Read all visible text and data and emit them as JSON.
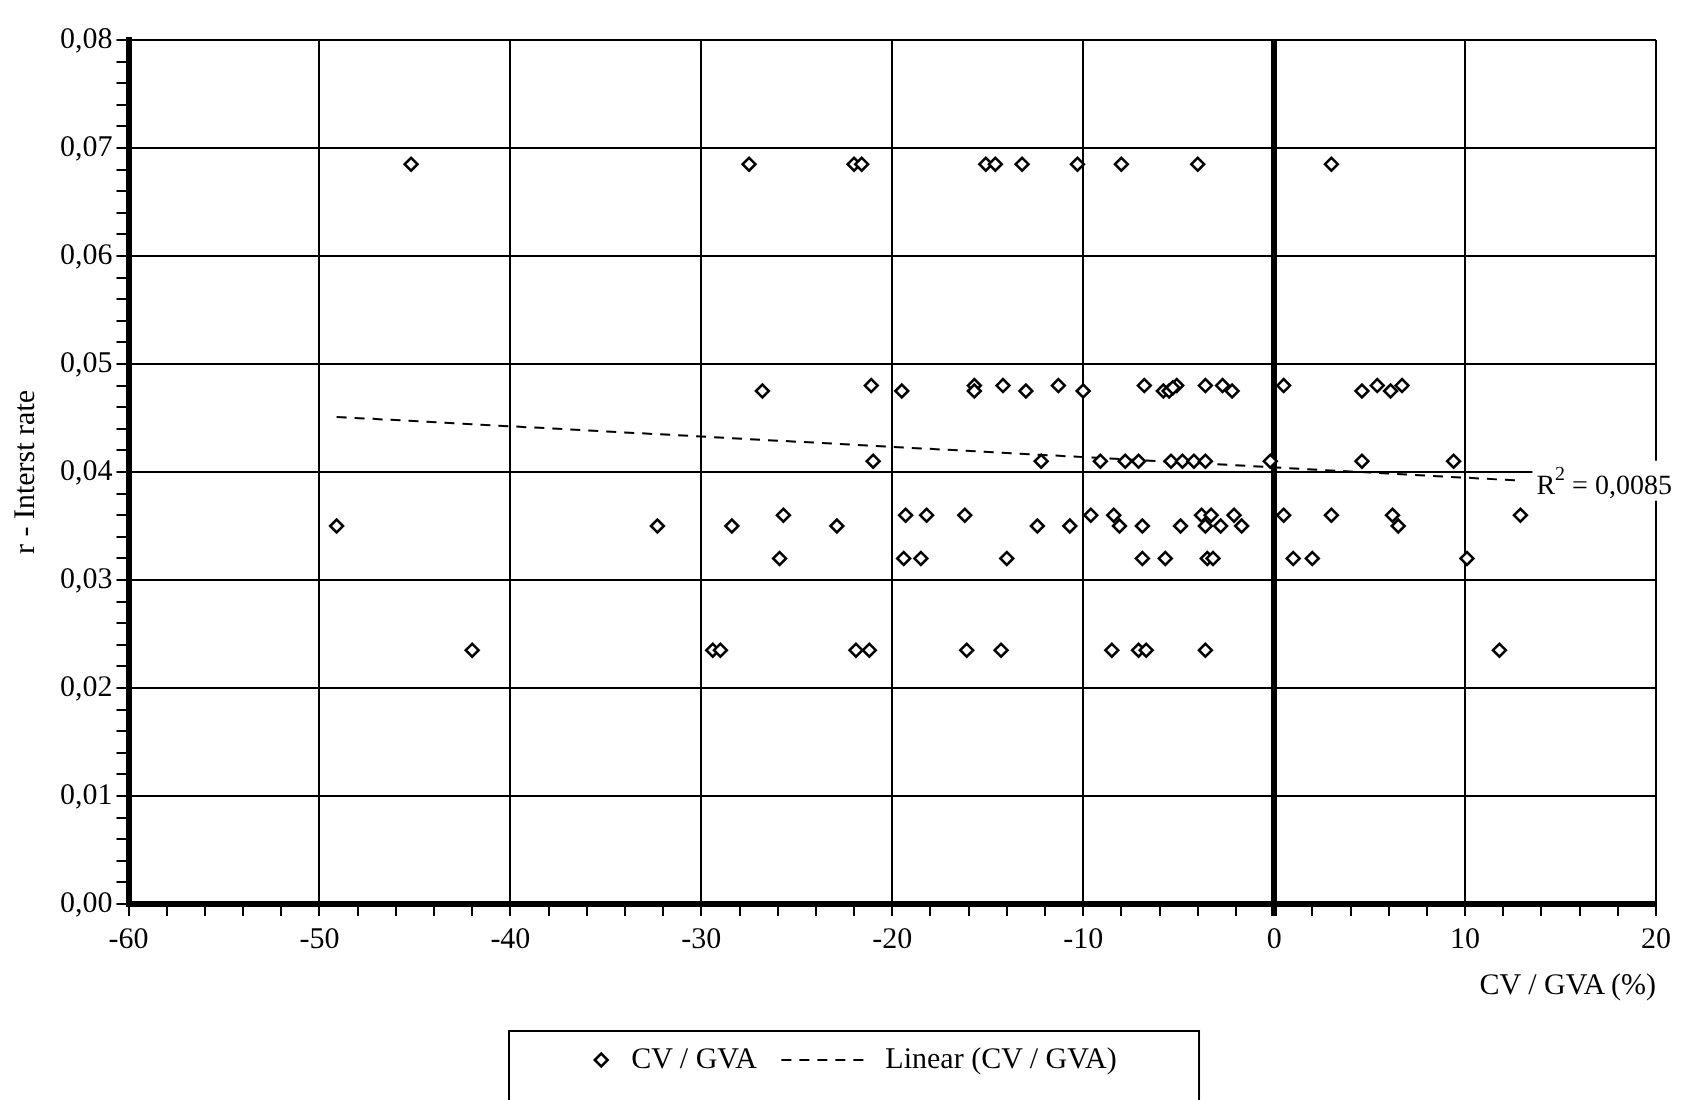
{
  "chart_data": {
    "type": "scatter",
    "xlabel": "CV / GVA (%)",
    "ylabel": "r - Interst rate",
    "xlim": [
      -60,
      20
    ],
    "xticks": [
      -60,
      {
        "value": -58,
        "label": null
      },
      {
        "value": -56,
        "label": null
      },
      {
        "value": -54,
        "label": null
      },
      {
        "value": -52,
        "label": null
      },
      -50,
      {
        "value": -48,
        "label": null
      },
      {
        "value": -46,
        "label": null
      },
      {
        "value": -44,
        "label": null
      },
      {
        "value": -42,
        "label": null
      },
      -40,
      {
        "value": -38,
        "label": null
      },
      {
        "value": -36,
        "label": null
      },
      {
        "value": -34,
        "label": null
      },
      {
        "value": -32,
        "label": null
      },
      -30,
      {
        "value": -28,
        "label": null
      },
      {
        "value": -26,
        "label": null
      },
      {
        "value": -24,
        "label": null
      },
      {
        "value": -22,
        "label": null
      },
      -20,
      {
        "value": -18,
        "label": null
      },
      {
        "value": -16,
        "label": null
      },
      {
        "value": -14,
        "label": null
      },
      {
        "value": -12,
        "label": null
      },
      -10,
      {
        "value": -8,
        "label": null
      },
      {
        "value": -6,
        "label": null
      },
      {
        "value": -4,
        "label": null
      },
      {
        "value": -2,
        "label": null
      },
      0,
      {
        "value": 2,
        "label": null
      },
      {
        "value": 4,
        "label": null
      },
      {
        "value": 6,
        "label": null
      },
      {
        "value": 8,
        "label": null
      },
      10,
      {
        "value": 12,
        "label": null
      },
      {
        "value": 14,
        "label": null
      },
      {
        "value": 16,
        "label": null
      },
      {
        "value": 18,
        "label": null
      },
      20
    ],
    "ylim": [
      0,
      0.08
    ],
    "yticks": [
      {
        "value": 0,
        "label": "0,00"
      },
      {
        "value": 0.002,
        "label": null
      },
      {
        "value": 0.004,
        "label": null
      },
      {
        "value": 0.006,
        "label": null
      },
      {
        "value": 0.008,
        "label": null
      },
      {
        "value": 0.01,
        "label": "0,01"
      },
      {
        "value": 0.012,
        "label": null
      },
      {
        "value": 0.014,
        "label": null
      },
      {
        "value": 0.016,
        "label": null
      },
      {
        "value": 0.018,
        "label": null
      },
      {
        "value": 0.02,
        "label": "0,02"
      },
      {
        "value": 0.022,
        "label": null
      },
      {
        "value": 0.024,
        "label": null
      },
      {
        "value": 0.026,
        "label": null
      },
      {
        "value": 0.028,
        "label": null
      },
      {
        "value": 0.03,
        "label": "0,03"
      },
      {
        "value": 0.032,
        "label": null
      },
      {
        "value": 0.034,
        "label": null
      },
      {
        "value": 0.036,
        "label": null
      },
      {
        "value": 0.038,
        "label": null
      },
      {
        "value": 0.04,
        "label": "0,04"
      },
      {
        "value": 0.042,
        "label": null
      },
      {
        "value": 0.044,
        "label": null
      },
      {
        "value": 0.046,
        "label": null
      },
      {
        "value": 0.048,
        "label": null
      },
      {
        "value": 0.05,
        "label": "0,05"
      },
      {
        "value": 0.052,
        "label": null
      },
      {
        "value": 0.054,
        "label": null
      },
      {
        "value": 0.056,
        "label": null
      },
      {
        "value": 0.058,
        "label": null
      },
      {
        "value": 0.06,
        "label": "0,06"
      },
      {
        "value": 0.062,
        "label": null
      },
      {
        "value": 0.064,
        "label": null
      },
      {
        "value": 0.066,
        "label": null
      },
      {
        "value": 0.068,
        "label": null
      },
      {
        "value": 0.07,
        "label": "0,07"
      },
      {
        "value": 0.072,
        "label": null
      },
      {
        "value": 0.074,
        "label": null
      },
      {
        "value": 0.076,
        "label": null
      },
      {
        "value": 0.078,
        "label": null
      },
      {
        "value": 0.08,
        "label": "0,08"
      }
    ],
    "grid": true,
    "legend": "bottom",
    "marker": "diamond",
    "series": [
      {
        "name": "CV / GVA",
        "color": "#000000",
        "x": [
          -45.2,
          -27.5,
          -22.0,
          -21.6,
          -15.1,
          -14.6,
          -13.2,
          -10.3,
          -8.0,
          -4.0,
          3.0,
          -21.1,
          -15.7,
          -14.2,
          -11.3,
          -6.8,
          -5.1,
          -3.6,
          -2.7,
          0.5,
          5.4,
          6.7,
          -26.8,
          -19.5,
          -15.7,
          -13.0,
          -10.0,
          -5.8,
          -5.5,
          -2.2,
          4.6,
          6.1,
          -5.3,
          -21.0,
          -12.2,
          -9.1,
          -7.8,
          -7.1,
          -5.4,
          -4.8,
          -4.2,
          -3.6,
          -0.2,
          4.6,
          9.4,
          -25.7,
          -19.3,
          -18.2,
          -16.2,
          -9.6,
          -8.4,
          -3.8,
          -3.3,
          -2.1,
          0.5,
          3.0,
          6.2,
          12.9,
          -49.1,
          -32.3,
          -28.4,
          -22.9,
          -12.4,
          -10.7,
          -8.1,
          -6.9,
          -4.9,
          -3.6,
          -2.8,
          -1.7,
          6.5,
          -25.9,
          -19.4,
          -18.5,
          -14.0,
          -6.9,
          -5.7,
          -3.5,
          -3.2,
          1.0,
          2.0,
          10.1,
          -42.0,
          -29.4,
          -29.0,
          -21.9,
          -21.2,
          -16.1,
          -14.3,
          -8.5,
          -7.1,
          -6.7,
          -3.6,
          11.8
        ],
        "values": [
          0.0685,
          0.0685,
          0.0685,
          0.0685,
          0.0685,
          0.0685,
          0.0685,
          0.0685,
          0.0685,
          0.0685,
          0.0685,
          0.048,
          0.048,
          0.048,
          0.048,
          0.048,
          0.048,
          0.048,
          0.048,
          0.048,
          0.048,
          0.048,
          0.0475,
          0.0475,
          0.0475,
          0.0475,
          0.0475,
          0.0475,
          0.0475,
          0.0475,
          0.0475,
          0.0475,
          0.0478,
          0.041,
          0.041,
          0.041,
          0.041,
          0.041,
          0.041,
          0.041,
          0.041,
          0.041,
          0.041,
          0.041,
          0.041,
          0.036,
          0.036,
          0.036,
          0.036,
          0.036,
          0.036,
          0.036,
          0.036,
          0.036,
          0.036,
          0.036,
          0.036,
          0.036,
          0.035,
          0.035,
          0.035,
          0.035,
          0.035,
          0.035,
          0.035,
          0.035,
          0.035,
          0.035,
          0.035,
          0.035,
          0.035,
          0.032,
          0.032,
          0.032,
          0.032,
          0.032,
          0.032,
          0.032,
          0.032,
          0.032,
          0.032,
          0.032,
          0.0235,
          0.0235,
          0.0235,
          0.0235,
          0.0235,
          0.0235,
          0.0235,
          0.0235,
          0.0235,
          0.0235,
          0.0235,
          0.0235
        ]
      },
      {
        "name": "Linear (CV / GVA)",
        "type": "line",
        "color": "#000000",
        "line_style": "dashed",
        "marker": "none",
        "x": [
          -49.1,
          12.9
        ],
        "values": [
          0.0451,
          0.0392
        ]
      }
    ],
    "annotations": [
      "R$^{2}$ = 0,0085"
    ]
  }
}
